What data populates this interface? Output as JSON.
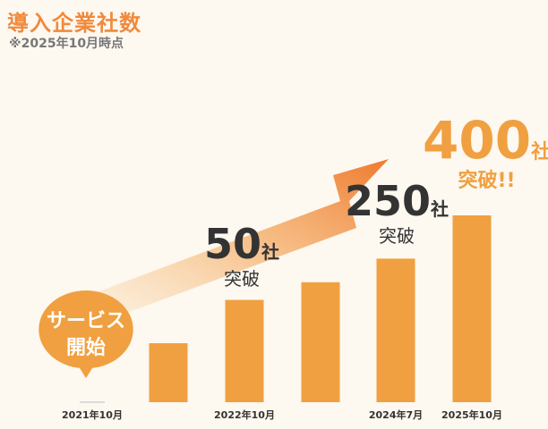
{
  "title": "導入企業社数",
  "subtitle": "※2025年10月時点",
  "bubble": {
    "text": "サービス\n開始"
  },
  "chart_data": {
    "type": "bar",
    "title": "導入企業社数",
    "subtitle": "※2025年10月時点",
    "categories": [
      "2021年10月",
      "",
      "2022年10月",
      "",
      "2024年7月",
      "2025年10月"
    ],
    "values": [
      0,
      30,
      52,
      61,
      73,
      95
    ],
    "color": "#f0a040",
    "annotations": [
      {
        "bar_index": 2,
        "number": "50",
        "unit": "社",
        "suffix": "突破"
      },
      {
        "bar_index": 4,
        "number": "250",
        "unit": "社",
        "suffix": "突破"
      },
      {
        "bar_index": 5,
        "number": "400",
        "unit": "社",
        "suffix": "突破!!"
      }
    ]
  }
}
